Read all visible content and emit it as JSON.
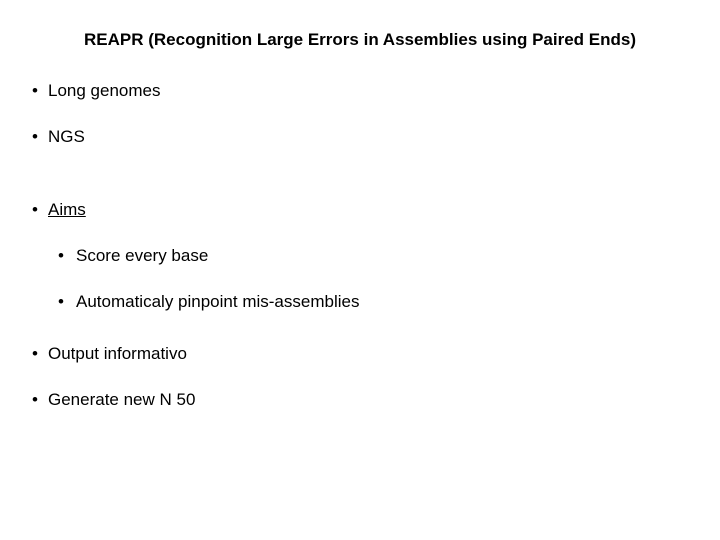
{
  "slide": {
    "title": "REAPR (Recognition Large Errors in Assemblies using Paired Ends)",
    "bullets": {
      "b1": "Long genomes",
      "b2": "NGS",
      "b3": "Aims",
      "b3_sub1": "Score every base",
      "b3_sub2": "Automaticaly pinpoint mis-assemblies",
      "b4": "Output informativo",
      "b5": "Generate new N 50"
    },
    "style": {
      "background_color": "#ffffff",
      "text_color": "#000000",
      "title_fontsize": 17,
      "title_fontweight": "bold",
      "body_fontsize": 17,
      "font_family": "Arial, Helvetica, sans-serif",
      "bullet_marker": "•"
    }
  }
}
